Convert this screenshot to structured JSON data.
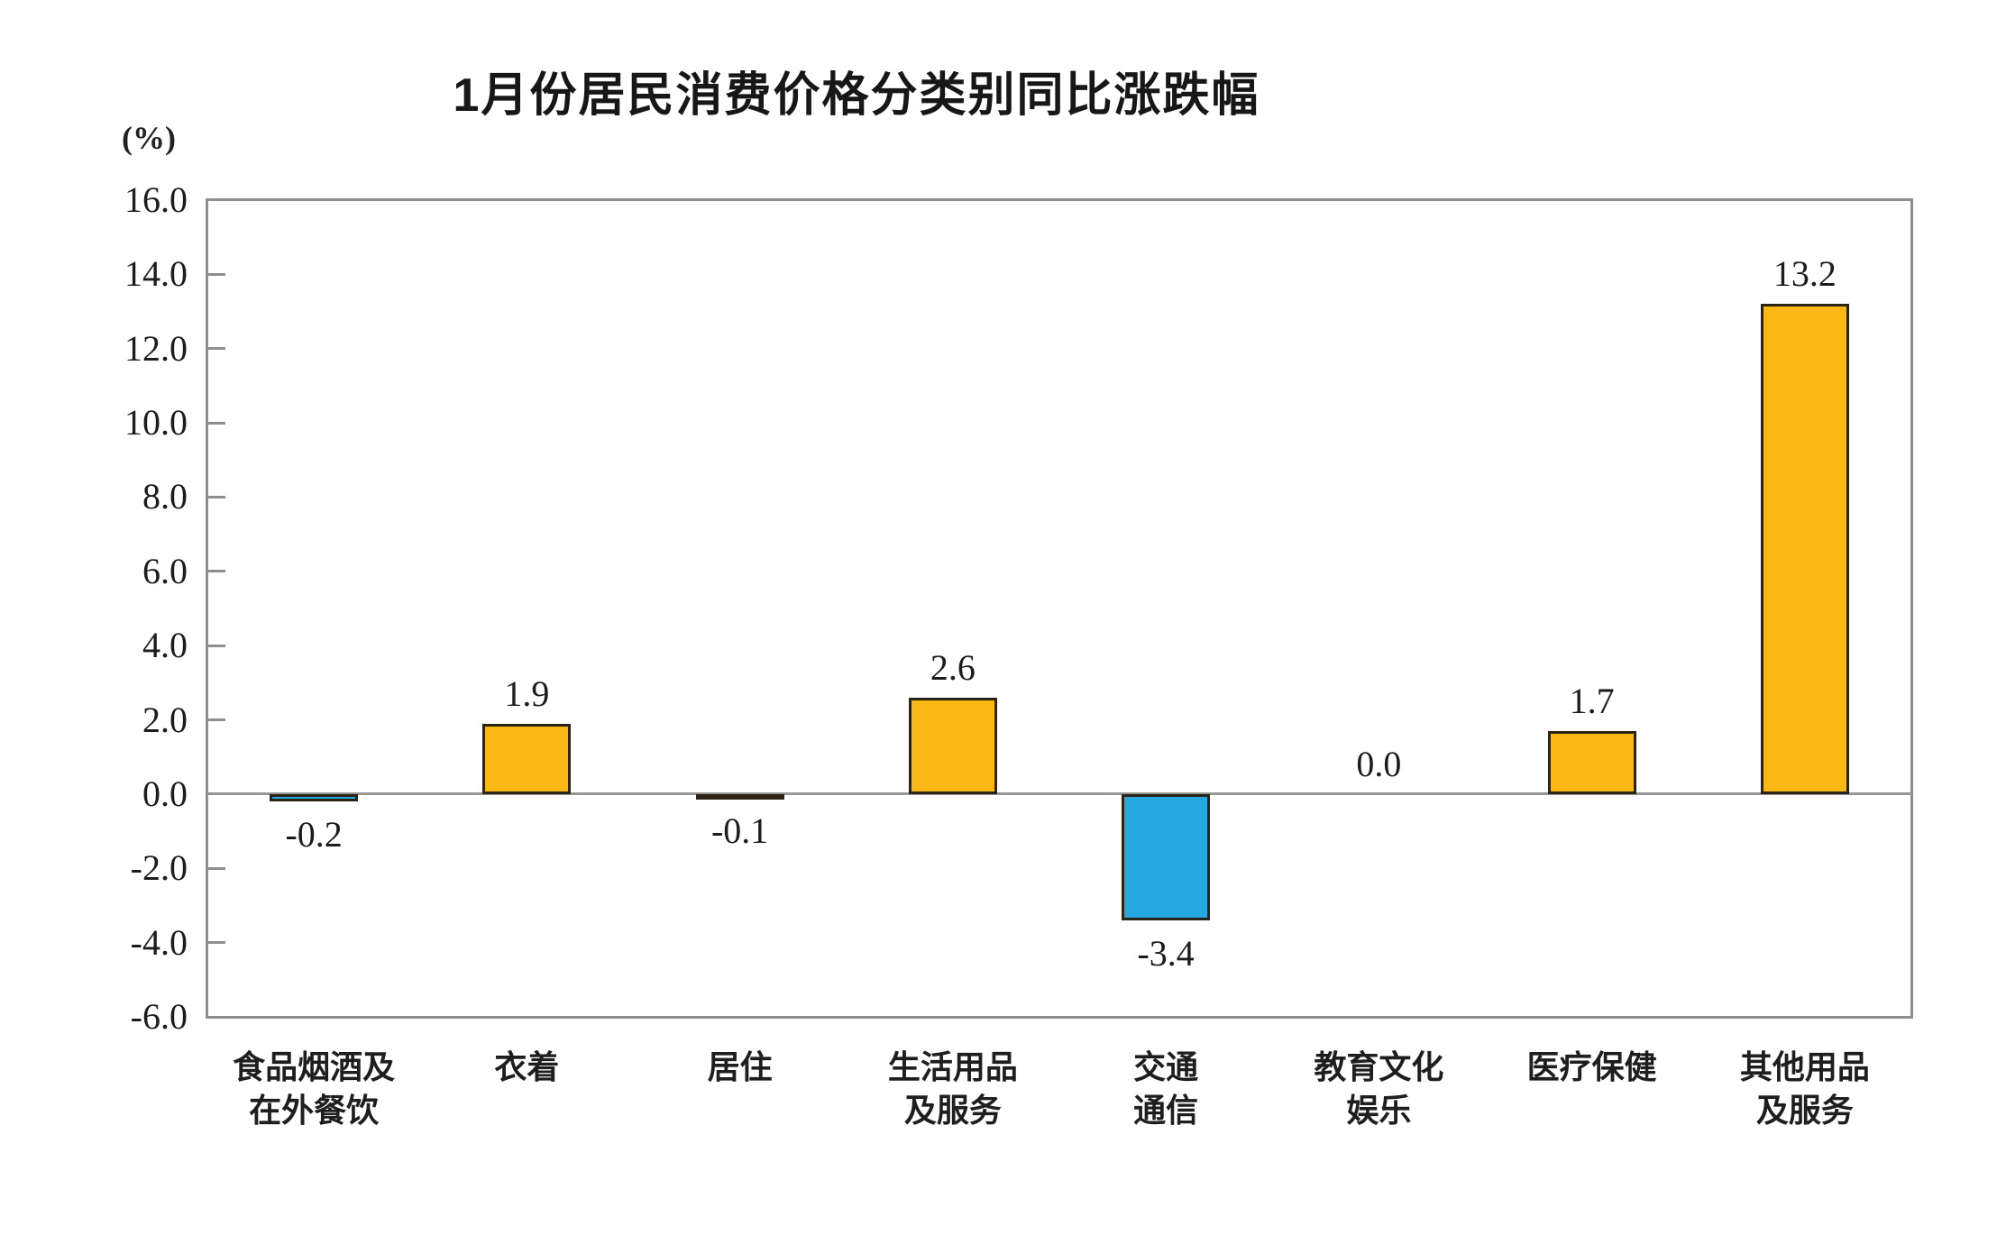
{
  "chart_data": {
    "type": "bar",
    "title": "1月份居民消费价格分类别同比涨跌幅",
    "unit_label": "(%)",
    "categories": [
      "食品烟酒及\n在外餐饮",
      "衣着",
      "居住",
      "生活用品\n及服务",
      "交通\n通信",
      "教育文化\n娱乐",
      "医疗保健",
      "其他用品\n及服务"
    ],
    "values": [
      -0.2,
      1.9,
      -0.1,
      2.6,
      -3.4,
      0.0,
      1.7,
      13.2
    ],
    "value_labels": [
      "-0.2",
      "1.9",
      "-0.1",
      "2.6",
      "-3.4",
      "0.0",
      "1.7",
      "13.2"
    ],
    "xlabel": "",
    "ylabel": "(%)",
    "ylim": [
      -6.0,
      16.0
    ],
    "ytick_step": 2.0,
    "ytick_labels": [
      "16.0",
      "14.0",
      "12.0",
      "10.0",
      "8.0",
      "6.0",
      "4.0",
      "2.0",
      "0.0",
      "-2.0",
      "-4.0",
      "-6.0"
    ],
    "grid": false,
    "legend": "none",
    "colors": {
      "positive_bar": "#FBB713",
      "negative_bar": "#26A9E0",
      "bar_outline": "#2B2414",
      "axis": "#8E8E8E",
      "text": "#1C1C1C",
      "background": "#FFFFFF"
    }
  }
}
